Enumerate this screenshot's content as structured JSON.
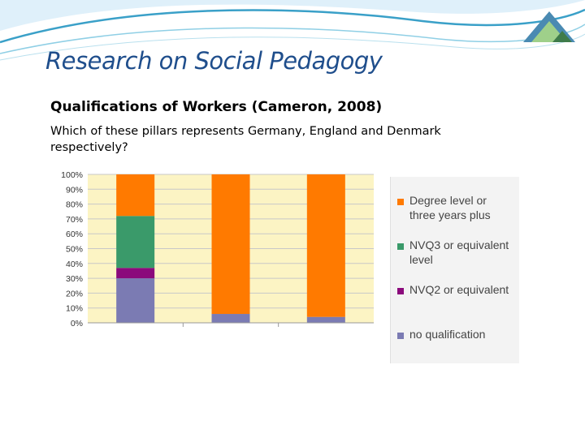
{
  "slide": {
    "title": "Research on Social Pedagogy",
    "subtitle": "Qualifications of Workers (Cameron, 2008)",
    "question": "Which of these pillars represents Germany, England and Denmark respectively?"
  },
  "colors": {
    "title": "#1f4e8c",
    "plot_background": "#fcf4c4",
    "grid": "#c8c8c8"
  },
  "chart_data": {
    "type": "bar",
    "stacked": true,
    "categories": [
      "",
      "",
      ""
    ],
    "ylim": [
      0,
      100
    ],
    "yticks": [
      "0%",
      "10%",
      "20%",
      "30%",
      "40%",
      "50%",
      "60%",
      "70%",
      "80%",
      "90%",
      "100%"
    ],
    "grid": true,
    "legend_position": "right",
    "series": [
      {
        "name": "no qualification",
        "color": "#7b7bb3",
        "values": [
          30,
          6,
          4
        ]
      },
      {
        "name": "NVQ2 or equivalent",
        "color": "#8b0a7c",
        "values": [
          7,
          0,
          0
        ]
      },
      {
        "name": "NVQ3 or equivalent level",
        "color": "#3a9a6a",
        "values": [
          35,
          0,
          0
        ]
      },
      {
        "name": "Degree level or three years plus",
        "color": "#ff7a00",
        "values": [
          28,
          94,
          96
        ]
      }
    ]
  }
}
